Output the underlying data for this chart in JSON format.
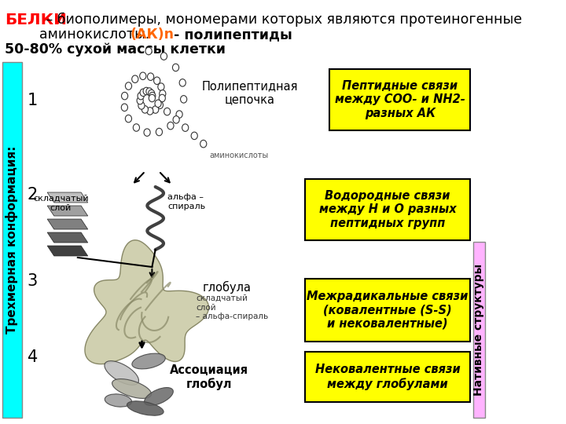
{
  "bg_color": "#ffffff",
  "left_bar_color": "#00ffff",
  "left_bar_text": "Трехмерная конформация:",
  "right_bar_color": "#ffb3ff",
  "right_bar_text": "Нативные структуры",
  "box1_text": "Пептидные связи\nмежду COO- и NH2-\nразных АК",
  "box2_text": "Водородные связи\nмежду Н и О разных\nпептидных групп",
  "box3_text": "Межрадикальные связи\n(ковалентные (S-S)\nи нековалентные)",
  "box4_text": "Нековалентные связи\nмежду глобулами",
  "label1": "Полипептидная\nцепочка",
  "label_globula": "глобула",
  "label_assoc": "Ассоциация\nглобул",
  "label_amino": "аминокислоты",
  "label_skladch1": "складчатый\nслой",
  "label_spiral1": "альфа –\nспираль",
  "label_skladch2": "складчатый\nслой",
  "label_spiral2": "– альфа-спираль"
}
